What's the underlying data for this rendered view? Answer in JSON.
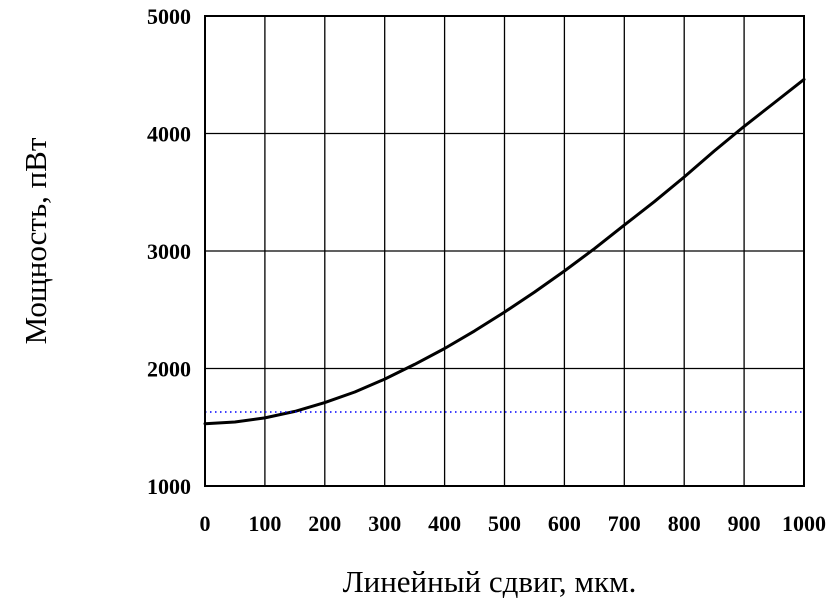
{
  "chart_data": {
    "type": "line",
    "title": "",
    "xlabel": "Линейный сдвиг, мкм.",
    "ylabel": "Мощность, пВт",
    "xlim": [
      0,
      1000
    ],
    "ylim": [
      1000,
      5000
    ],
    "x_ticks": [
      0,
      100,
      200,
      300,
      400,
      500,
      600,
      700,
      800,
      900,
      1000
    ],
    "y_ticks": [
      1000,
      2000,
      3000,
      4000,
      5000
    ],
    "grid": true,
    "legend": "none",
    "series": [
      {
        "style": "solid",
        "color": "#000000",
        "x": [
          0,
          50,
          100,
          150,
          200,
          250,
          300,
          350,
          400,
          450,
          500,
          550,
          600,
          650,
          700,
          750,
          800,
          850,
          900,
          950,
          1000
        ],
        "y": [
          1530,
          1545,
          1580,
          1635,
          1710,
          1800,
          1910,
          2035,
          2170,
          2320,
          2480,
          2650,
          2830,
          3020,
          3220,
          3420,
          3630,
          3850,
          4060,
          4260,
          4460
        ]
      },
      {
        "style": "dotted",
        "color": "#0000ff",
        "x": [
          0,
          1000
        ],
        "y": [
          1630,
          1630
        ]
      }
    ]
  }
}
